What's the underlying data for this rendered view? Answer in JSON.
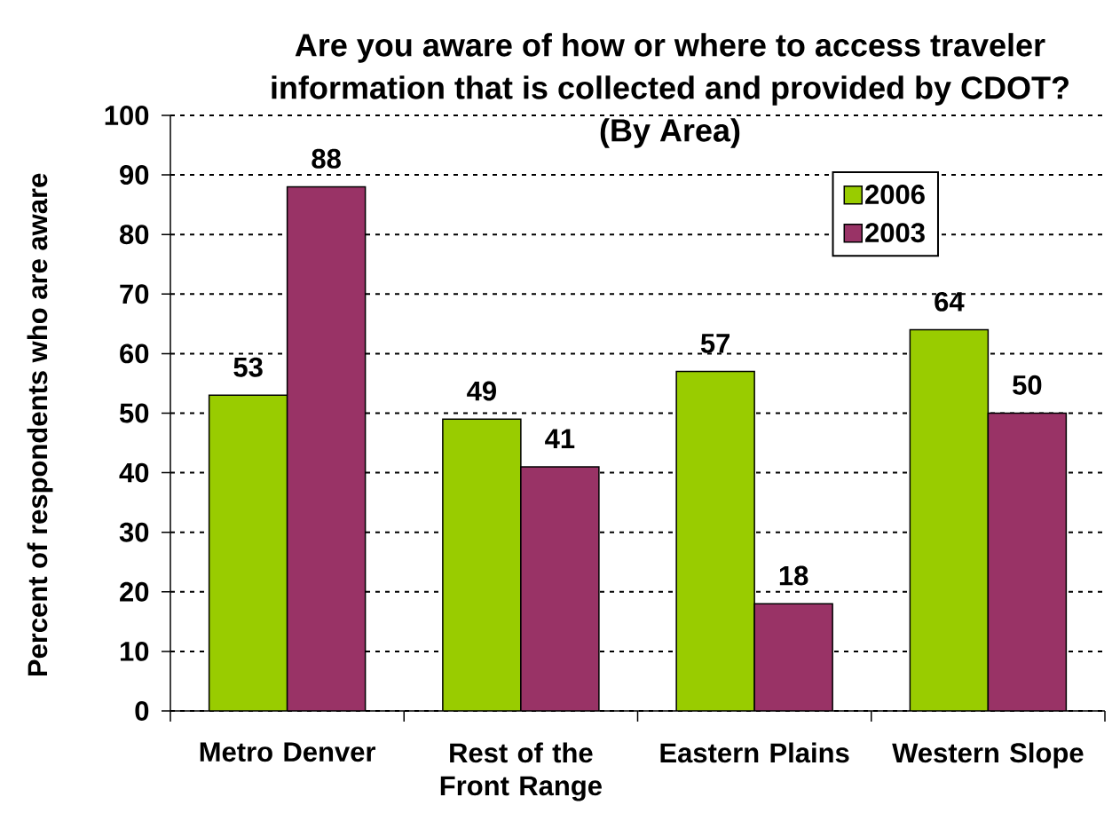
{
  "chart_data": {
    "type": "bar",
    "title": "Are you aware of how or where to access traveler information that is collected and provided by CDOT? (By Area)",
    "ylabel": "Percent of respondents who are aware",
    "categories": [
      "Metro Denver",
      "Rest of the Front Range",
      "Eastern Plains",
      "Western Slope"
    ],
    "series": [
      {
        "name": "2006",
        "color": "#99cc00",
        "values": [
          53,
          49,
          57,
          64
        ]
      },
      {
        "name": "2003",
        "color": "#993366",
        "values": [
          88,
          41,
          18,
          50
        ]
      }
    ],
    "ylim": [
      0,
      100
    ],
    "yticks": [
      0,
      10,
      20,
      30,
      40,
      50,
      60,
      70,
      80,
      90,
      100
    ],
    "grid": "y",
    "legend": "top right",
    "data_labels": true
  }
}
